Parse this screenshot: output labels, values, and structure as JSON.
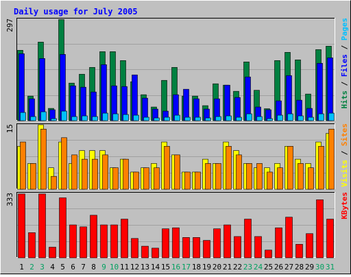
{
  "chart_data": {
    "type": "bar",
    "title": "Daily usage for July 2005",
    "categories": [
      "1",
      "2",
      "3",
      "4",
      "5",
      "6",
      "7",
      "8",
      "9",
      "10",
      "11",
      "12",
      "13",
      "14",
      "15",
      "16",
      "17",
      "18",
      "19",
      "20",
      "21",
      "22",
      "23",
      "24",
      "25",
      "26",
      "27",
      "28",
      "29",
      "30",
      "31"
    ],
    "weekend_days": [
      "2",
      "3",
      "9",
      "10",
      "16",
      "17",
      "23",
      "24",
      "30",
      "31"
    ],
    "panels": [
      {
        "id": "hits-files-pages",
        "max_label": "297",
        "ylim": [
          0,
          297
        ],
        "legend": [
          "Pages",
          "Files",
          "Hits"
        ],
        "series": [
          {
            "name": "Hits",
            "values": [
              206,
              72,
              230,
              36,
              296,
              110,
              136,
              156,
              202,
              202,
              176,
              114,
              76,
              40,
              118,
              156,
              72,
              72,
              44,
              108,
              104,
              86,
              172,
              89,
              35,
              176,
              200,
              178,
              78,
              208,
              218
            ]
          },
          {
            "name": "Files",
            "values": [
              196,
              64,
              182,
              32,
              194,
              102,
              98,
              84,
              164,
              102,
              100,
              134,
              66,
              34,
              28,
              76,
              92,
              64,
              34,
              64,
              104,
              68,
              128,
              40,
              32,
              58,
              132,
              60,
              36,
              168,
              184
            ]
          },
          {
            "name": "Pages",
            "values": [
              24,
              12,
              26,
              6,
              28,
              12,
              14,
              12,
              22,
              20,
              18,
              16,
              10,
              8,
              10,
              16,
              10,
              10,
              8,
              12,
              14,
              10,
              20,
              12,
              6,
              16,
              20,
              14,
              10,
              20,
              22
            ]
          }
        ]
      },
      {
        "id": "visits-sites",
        "max_label": "15",
        "ylim": [
          0,
          15
        ],
        "legend": [
          "Sites",
          "Visits"
        ],
        "series": [
          {
            "name": "Visits",
            "values": [
              10,
              6,
              15,
              5,
              11,
              6,
              9,
              9,
              9,
              5,
              7,
              4,
              5,
              6,
              11,
              8,
              4,
              4,
              7,
              6,
              11,
              9,
              6,
              5,
              5,
              6,
              10,
              7,
              6,
              11,
              13
            ]
          },
          {
            "name": "Sites",
            "values": [
              11,
              6,
              14,
              3,
              12,
              8,
              7,
              7,
              8,
              5,
              7,
              4,
              5,
              5,
              10,
              8,
              4,
              4,
              6,
              6,
              10,
              8,
              6,
              6,
              4,
              5,
              10,
              6,
              5,
              10,
              14
            ]
          }
        ]
      },
      {
        "id": "kbytes",
        "max_label": "333",
        "ylim": [
          0,
          333
        ],
        "legend": [
          "KBytes"
        ],
        "series": [
          {
            "name": "KBytes",
            "values": [
              330,
              130,
              330,
              55,
              310,
              170,
              160,
              220,
              170,
              170,
              200,
              100,
              60,
              50,
              150,
              155,
              105,
              105,
              90,
              150,
              170,
              110,
              200,
              110,
              40,
              155,
              210,
              70,
              125,
              300,
              200
            ]
          }
        ]
      }
    ]
  },
  "colors": {
    "background": "#c0c0c0",
    "title_text": "#0000ff",
    "hits": "#008040",
    "files": "#0000ff",
    "pages": "#00c0ff",
    "visits": "#ffff00",
    "sites": "#ff8000",
    "kbytes": "#ff0000",
    "weekend_label": "#00a060",
    "weekday_label": "#000000"
  }
}
